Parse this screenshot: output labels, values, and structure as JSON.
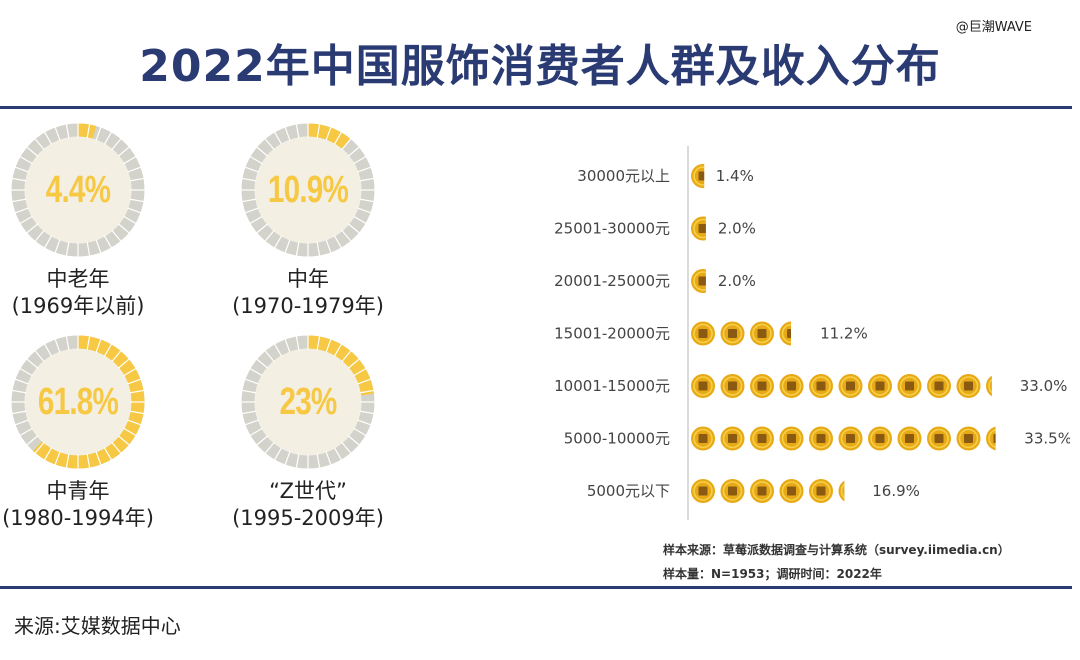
{
  "title": "2022年中国服饰消费者人群及收入分布",
  "watermark": "@巨潮WAVE",
  "colors": {
    "title": "#2a3a72",
    "rule": "#2a3a72",
    "donut_track": "#d3d3cc",
    "donut_fill": "#f6c843",
    "donut_inner": "#f3efe3",
    "coin_outer": "#e7a916",
    "coin_ring": "#f7d04a",
    "coin_hole": "#8a5a12"
  },
  "chart_data": [
    {
      "type": "donut",
      "segments": [
        {
          "name": "中老年",
          "range": "(1969年以前)",
          "label": "4.4%",
          "value": 4.4
        },
        {
          "name": "中年",
          "range": "(1970-1979年)",
          "label": "10.9%",
          "value": 10.9
        },
        {
          "name": "中青年",
          "range": "(1980-1994年)",
          "label": "61.8%",
          "value": 61.8
        },
        {
          "name": "“Z世代”",
          "range": "(1995-2009年)",
          "label": "23%",
          "value": 23
        }
      ]
    },
    {
      "type": "bar",
      "categories": [
        "30000元以上",
        "25001-30000元",
        "20001-25000元",
        "15001-20000元",
        "10001-15000元",
        "5000-10000元",
        "5000元以下"
      ],
      "values": [
        1.4,
        2.0,
        2.0,
        11.2,
        33.0,
        33.5,
        16.9
      ],
      "labels": [
        "1.4%",
        "2.0%",
        "2.0%",
        "11.2%",
        "33.0%",
        "33.5%",
        "16.9%"
      ],
      "unit": "%",
      "xlim": [
        0,
        33.5
      ],
      "mark_icon": "coin-icon"
    }
  ],
  "notes": {
    "source_line": "样本来源：草莓派数据调查与计算系统（survey.iimedia.cn）",
    "sample_line": "样本量：N=1953；调研时间：2022年"
  },
  "footer": {
    "source": "来源:艾媒数据中心"
  }
}
